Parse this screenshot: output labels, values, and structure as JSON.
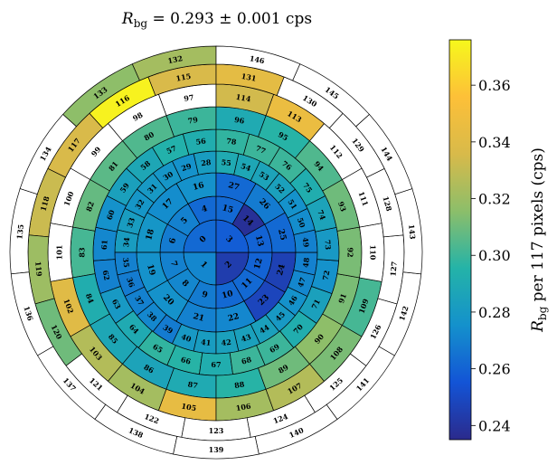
{
  "chart_data": {
    "type": "heatmap",
    "layout": "polar detector segments",
    "title": {
      "symbol": "R",
      "subscript": "bg",
      "text": " = 0.293 ± 0.001 cps"
    },
    "colorbar": {
      "label_symbol": "R",
      "label_subscript": "bg",
      "label_text": " per 117 pixels (cps)",
      "range": [
        0.235,
        0.376
      ],
      "ticks": [
        "0.24",
        "0.26",
        "0.28",
        "0.30",
        "0.32",
        "0.34",
        "0.36"
      ],
      "colormap": [
        "#2b2a8c",
        "#1354d6",
        "#1491cc",
        "#24b3a8",
        "#8cbe6a",
        "#d8ba4a",
        "#fdc038",
        "#f6f81c"
      ]
    },
    "rings": [
      {
        "ids": [
          0,
          1,
          2,
          3
        ],
        "start": 0,
        "values": [
          0.262,
          0.272,
          0.244,
          0.258
        ]
      },
      {
        "ids": [
          4,
          5,
          6,
          7,
          8,
          9,
          10,
          11,
          12,
          13,
          14,
          15
        ],
        "start": 4,
        "values": [
          0.262,
          0.27,
          0.268,
          0.27,
          0.272,
          0.268,
          0.262,
          0.262,
          0.26,
          0.26,
          0.238,
          0.262
        ]
      },
      {
        "ids": [
          16,
          17,
          18,
          19,
          20,
          21,
          22,
          23,
          24,
          25,
          26,
          27
        ],
        "start": 16,
        "values": [
          0.276,
          0.274,
          0.278,
          0.276,
          0.276,
          0.27,
          0.272,
          0.248,
          0.246,
          0.262,
          0.268,
          0.262
        ]
      },
      {
        "ids": [
          28,
          29,
          30,
          31,
          32,
          33,
          34,
          35,
          36,
          37,
          38,
          39,
          40,
          41,
          42,
          43,
          44,
          45,
          46,
          47,
          48,
          49,
          50,
          51,
          52,
          53,
          54,
          55
        ],
        "start": 28,
        "values": [
          0.282,
          0.276,
          0.278,
          0.28,
          0.278,
          0.282,
          0.282,
          0.27,
          0.268,
          0.27,
          0.272,
          0.268,
          0.28,
          0.282,
          0.284,
          0.284,
          0.284,
          0.28,
          0.276,
          0.272,
          0.27,
          0.27,
          0.274,
          0.276,
          0.284,
          0.286,
          0.288,
          0.29
        ]
      },
      {
        "ids": [
          56,
          57,
          58,
          59,
          60,
          61,
          62,
          63,
          64,
          65,
          66,
          67,
          68,
          69,
          70,
          71,
          72,
          73,
          74,
          75,
          76,
          77,
          78
        ],
        "start": 56,
        "values": [
          0.292,
          0.294,
          0.288,
          0.284,
          0.276,
          0.272,
          0.27,
          0.28,
          0.29,
          0.298,
          0.296,
          0.292,
          0.3,
          0.3,
          0.292,
          0.284,
          0.276,
          0.28,
          0.286,
          0.292,
          0.3,
          0.3,
          0.298
        ]
      },
      {
        "ids": [
          79,
          80,
          81,
          82,
          83,
          84,
          85,
          86,
          87,
          88,
          89,
          90,
          91,
          92,
          93,
          94,
          95,
          96,
          97,
          98,
          99,
          100,
          101,
          102,
          103,
          104,
          105,
          106,
          107,
          108,
          109,
          110,
          111,
          112,
          113,
          114,
          115,
          116,
          117,
          118,
          119,
          120,
          121,
          122,
          123,
          124,
          125,
          126,
          127,
          128,
          129,
          130,
          131,
          132,
          133,
          134,
          135,
          136,
          137,
          138,
          139,
          140,
          141,
          142,
          143,
          144,
          145,
          146
        ],
        "start": 79,
        "values": [
          0.3,
          0.304,
          0.306,
          0.308,
          0.302,
          0.292,
          0.288,
          0.286,
          0.29,
          0.296,
          0.31,
          0.316,
          0.312,
          0.312,
          0.31,
          0.304,
          0.296,
          0.29,
          null,
          null,
          null,
          null,
          null,
          0.34,
          0.326,
          0.322,
          0.344,
          0.322,
          0.326,
          0.312,
          0.302,
          null,
          null,
          null,
          0.346,
          0.334,
          0.336,
          0.374,
          0.336,
          0.332,
          0.32,
          0.31,
          null,
          null,
          null,
          null,
          null,
          null,
          null,
          null,
          null,
          null,
          0.342,
          0.322,
          0.316,
          null,
          null,
          null,
          null,
          null,
          null,
          null,
          null,
          null,
          null,
          null,
          null,
          null
        ]
      }
    ],
    "segment_count": 147
  }
}
